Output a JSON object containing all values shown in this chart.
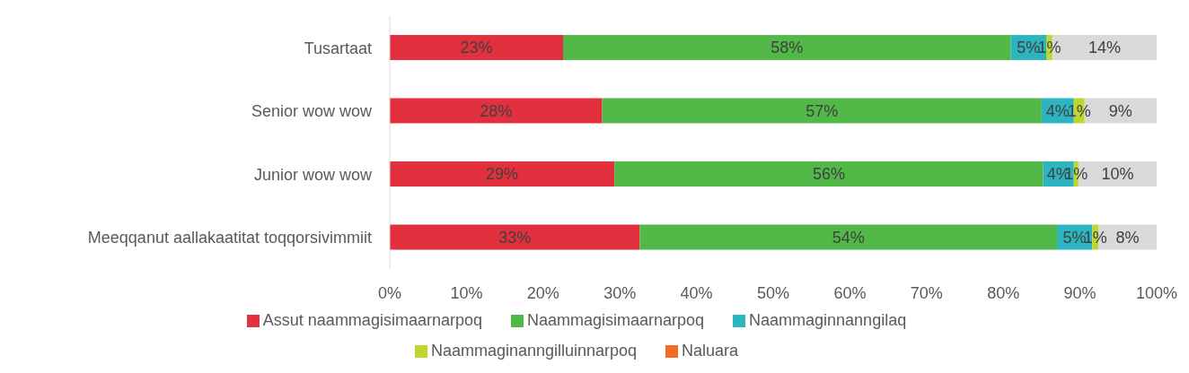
{
  "chart_data": {
    "type": "bar",
    "orientation": "horizontal",
    "stacked": true,
    "categories": [
      "Tusartaat",
      "Senior wow wow",
      "Junior wow wow",
      "Meeqqanut aallakaatitat toqqorsivimmiit"
    ],
    "series": [
      {
        "name": "Assut naammagisimaarnarpoq",
        "color": "#e3303f",
        "values": [
          22.6,
          27.7,
          29.3,
          32.6
        ],
        "value_labels": [
          "23%",
          "28%",
          "29%",
          "33%"
        ]
      },
      {
        "name": "Naammagisimaarnarpoq",
        "color": "#52b848",
        "values": [
          58.4,
          57.3,
          55.9,
          54.4
        ],
        "value_labels": [
          "58%",
          "57%",
          "56%",
          "54%"
        ]
      },
      {
        "name": "Naammaginnanngilaq",
        "color": "#2cb5c0",
        "values": [
          4.6,
          4.2,
          4.0,
          4.6
        ],
        "value_labels": [
          "5%",
          "4%",
          "4%",
          "5%"
        ]
      },
      {
        "name": "Naammaginanngilluinnarpoq",
        "color": "#bfd630",
        "values": [
          0.8,
          1.4,
          0.6,
          0.8
        ],
        "value_labels": [
          "1%",
          "1%",
          "1%",
          "1%"
        ]
      },
      {
        "name": "Naluara",
        "color": "#f26b21",
        "values": [
          null,
          null,
          null,
          null
        ]
      },
      {
        "color": "#d9d9d9",
        "values": [
          13.6,
          9.4,
          10.2,
          7.6
        ],
        "value_labels": [
          "14%",
          "9%",
          "10%",
          "8%"
        ]
      }
    ],
    "xlim": [
      0,
      100
    ],
    "xticks": [
      {
        "value": 0,
        "label": "0%"
      },
      {
        "value": 10,
        "label": "10%"
      },
      {
        "value": 20,
        "label": "20%"
      },
      {
        "value": 30,
        "label": "30%"
      },
      {
        "value": 40,
        "label": "40%"
      },
      {
        "value": 50,
        "label": "50%"
      },
      {
        "value": 60,
        "label": "60%"
      },
      {
        "value": 70,
        "label": "70%"
      },
      {
        "value": 80,
        "label": "80%"
      },
      {
        "value": 90,
        "label": "90%"
      },
      {
        "value": 100,
        "label": "100%"
      }
    ],
    "grid": false,
    "legend": "bottom"
  }
}
